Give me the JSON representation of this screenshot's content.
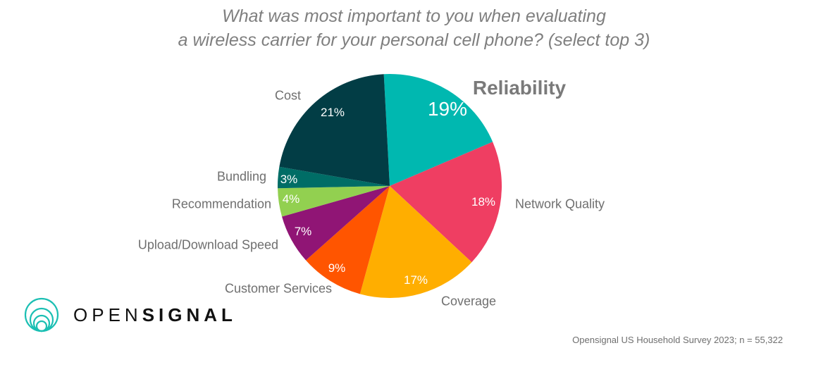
{
  "chart_data": {
    "type": "pie",
    "title_lines": [
      "What was most important to you when evaluating",
      "a wireless carrier for your personal cell phone? (select top 3)"
    ],
    "start_angle_deg": -3,
    "direction": "clockwise",
    "slices": [
      {
        "label": "Reliability",
        "value": 19,
        "value_label": "19%",
        "color": "#00b8b0",
        "highlight": true
      },
      {
        "label": "Network Quality",
        "value": 18,
        "value_label": "18%",
        "color": "#ef3e62"
      },
      {
        "label": "Coverage",
        "value": 17,
        "value_label": "17%",
        "color": "#ffae00"
      },
      {
        "label": "Customer Services",
        "value": 9,
        "value_label": "9%",
        "color": "#ff5500"
      },
      {
        "label": "Upload/Download Speed",
        "value": 7,
        "value_label": "7%",
        "color": "#901575"
      },
      {
        "label": "Recommendation",
        "value": 4,
        "value_label": "4%",
        "color": "#92d050"
      },
      {
        "label": "Bundling",
        "value": 3,
        "value_label": "3%",
        "color": "#006d66"
      },
      {
        "label": "Cost",
        "value": 21,
        "value_label": "21%",
        "color": "#023d45"
      }
    ]
  },
  "source": "Opensignal US Household Survey 2023; n = 55,322",
  "logo": {
    "text_light": "OPEN",
    "text_bold": "SIGNAL",
    "color": "#1bbfb3"
  }
}
